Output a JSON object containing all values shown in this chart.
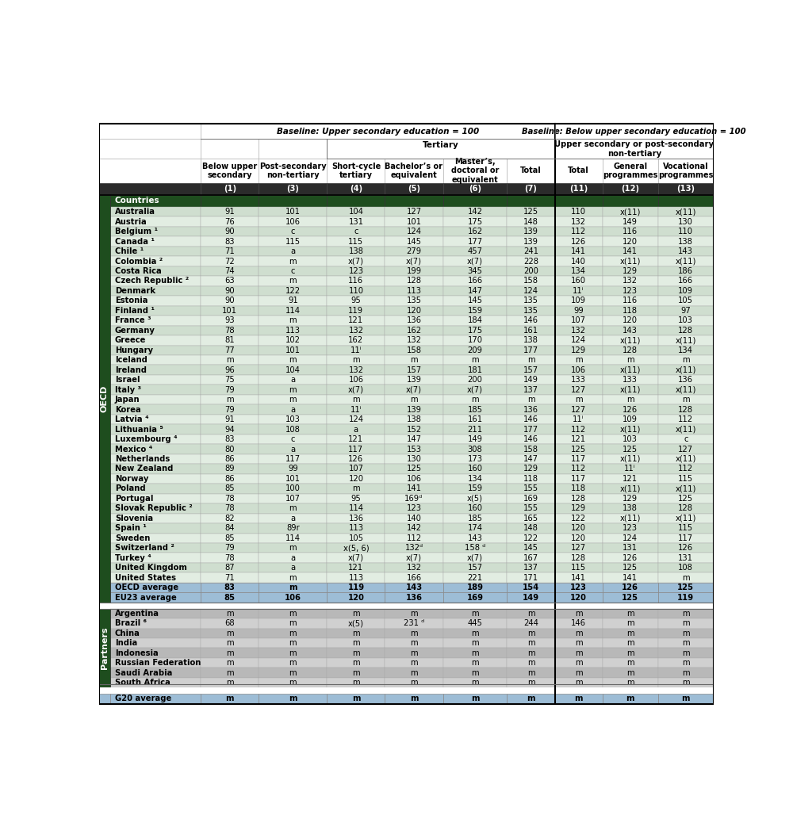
{
  "col_headers": [
    "Below upper\nsecondary",
    "Post-secondary\nnon-tertiary",
    "Short-cycle\ntertiary",
    "Bachelor’s or\nequivalent",
    "Master’s,\ndoctoral or\nequivalent",
    "Total",
    "Total",
    "General\nprogrammes",
    "Vocational\nprogrammes"
  ],
  "col_numbers": [
    "(1)",
    "(3)",
    "(4)",
    "(5)",
    "(6)",
    "(7)",
    "(11)",
    "(12)",
    "(13)"
  ],
  "oecd_rows": [
    [
      "Australia",
      "91",
      "101",
      "104",
      "127",
      "142",
      "125",
      "110",
      "x(11)",
      "x(11)"
    ],
    [
      "Austria",
      "76",
      "106",
      "131",
      "101",
      "175",
      "148",
      "132",
      "149",
      "130"
    ],
    [
      "Belgium ¹",
      "90",
      "c",
      "c",
      "124",
      "162",
      "139",
      "112",
      "116",
      "110"
    ],
    [
      "Canada ¹",
      "83",
      "115",
      "115",
      "145",
      "177",
      "139",
      "126",
      "120",
      "138"
    ],
    [
      "Chile ¹",
      "71",
      "a",
      "138",
      "279",
      "457",
      "241",
      "141",
      "141",
      "143"
    ],
    [
      "Colombia ²",
      "72",
      "m",
      "x(7)",
      "x(7)",
      "x(7)",
      "228",
      "140",
      "x(11)",
      "x(11)"
    ],
    [
      "Costa Rica",
      "74",
      "c",
      "123",
      "199",
      "345",
      "200",
      "134",
      "129",
      "186"
    ],
    [
      "Czech Republic ²",
      "63",
      "m",
      "116",
      "128",
      "166",
      "158",
      "160",
      "132",
      "166"
    ],
    [
      "Denmark",
      "90",
      "122",
      "110",
      "113",
      "147",
      "124",
      "11ⁱ",
      "123",
      "109"
    ],
    [
      "Estonia",
      "90",
      "91",
      "95",
      "135",
      "145",
      "135",
      "109",
      "116",
      "105"
    ],
    [
      "Finland ¹",
      "101",
      "114",
      "119",
      "120",
      "159",
      "135",
      "99",
      "118",
      "97"
    ],
    [
      "France ³",
      "93",
      "m",
      "121",
      "136",
      "184",
      "146",
      "107",
      "120",
      "103"
    ],
    [
      "Germany",
      "78",
      "113",
      "132",
      "162",
      "175",
      "161",
      "132",
      "143",
      "128"
    ],
    [
      "Greece",
      "81",
      "102",
      "162",
      "132",
      "170",
      "138",
      "124",
      "x(11)",
      "x(11)"
    ],
    [
      "Hungary",
      "77",
      "101",
      "11ⁱ",
      "158",
      "209",
      "177",
      "129",
      "128",
      "134"
    ],
    [
      "Iceland",
      "m",
      "m",
      "m",
      "m",
      "m",
      "m",
      "m",
      "m",
      "m"
    ],
    [
      "Ireland",
      "96",
      "104",
      "132",
      "157",
      "181",
      "157",
      "106",
      "x(11)",
      "x(11)"
    ],
    [
      "Israel",
      "75",
      "a",
      "106",
      "139",
      "200",
      "149",
      "133",
      "133",
      "136"
    ],
    [
      "Italy ³",
      "79",
      "m",
      "x(7)",
      "x(7)",
      "x(7)",
      "137",
      "127",
      "x(11)",
      "x(11)"
    ],
    [
      "Japan",
      "m",
      "m",
      "m",
      "m",
      "m",
      "m",
      "m",
      "m",
      "m"
    ],
    [
      "Korea",
      "79",
      "a",
      "11ⁱ",
      "139",
      "185",
      "136",
      "127",
      "126",
      "128"
    ],
    [
      "Latvia ⁴",
      "91",
      "103",
      "124",
      "138",
      "161",
      "146",
      "11ⁱ",
      "109",
      "112"
    ],
    [
      "Lithuania ⁵",
      "94",
      "108",
      "a",
      "152",
      "211",
      "177",
      "112",
      "x(11)",
      "x(11)"
    ],
    [
      "Luxembourg ⁴",
      "83",
      "c",
      "121",
      "147",
      "149",
      "146",
      "121",
      "103",
      "c"
    ],
    [
      "Mexico ⁴",
      "80",
      "a",
      "117",
      "153",
      "308",
      "158",
      "125",
      "125",
      "127"
    ],
    [
      "Netherlands",
      "86",
      "117",
      "126",
      "130",
      "173",
      "147",
      "117",
      "x(11)",
      "x(11)"
    ],
    [
      "New Zealand",
      "89",
      "99",
      "107",
      "125",
      "160",
      "129",
      "112",
      "11ⁱ",
      "112"
    ],
    [
      "Norway",
      "86",
      "101",
      "120",
      "106",
      "134",
      "118",
      "117",
      "121",
      "115"
    ],
    [
      "Poland",
      "85",
      "100",
      "m",
      "141",
      "159",
      "155",
      "118",
      "x(11)",
      "x(11)"
    ],
    [
      "Portugal",
      "78",
      "107",
      "95",
      "169ᵈ",
      "x(5)",
      "169",
      "128",
      "129",
      "125"
    ],
    [
      "Slovak Republic ²",
      "78",
      "m",
      "114",
      "123",
      "160",
      "155",
      "129",
      "138",
      "128"
    ],
    [
      "Slovenia",
      "82",
      "a",
      "136",
      "140",
      "185",
      "165",
      "122",
      "x(11)",
      "x(11)"
    ],
    [
      "Spain ¹",
      "84",
      "89r",
      "113",
      "142",
      "174",
      "148",
      "120",
      "123",
      "115"
    ],
    [
      "Sweden",
      "85",
      "114",
      "105",
      "112",
      "143",
      "122",
      "120",
      "124",
      "117"
    ],
    [
      "Switzerland ²",
      "79",
      "m",
      "x(5, 6)",
      "132ᵈ",
      "158 ᵈ",
      "145",
      "127",
      "131",
      "126"
    ],
    [
      "Turkey ⁴",
      "78",
      "a",
      "x(7)",
      "x(7)",
      "x(7)",
      "167",
      "128",
      "126",
      "131"
    ],
    [
      "United Kingdom",
      "87",
      "a",
      "121",
      "132",
      "157",
      "137",
      "115",
      "125",
      "108"
    ],
    [
      "United States",
      "71",
      "m",
      "113",
      "166",
      "221",
      "171",
      "141",
      "141",
      "m"
    ]
  ],
  "oecd_avg_rows": [
    [
      "OECD average",
      "83",
      "m",
      "119",
      "143",
      "189",
      "154",
      "123",
      "126",
      "125"
    ],
    [
      "EU23 average",
      "85",
      "106",
      "120",
      "136",
      "169",
      "149",
      "120",
      "125",
      "119"
    ]
  ],
  "partner_rows": [
    [
      "Argentina",
      "m",
      "m",
      "m",
      "m",
      "m",
      "m",
      "m",
      "m",
      "m"
    ],
    [
      "Brazil ⁶",
      "68",
      "m",
      "x(5)",
      "231 ᵈ",
      "445",
      "244",
      "146",
      "m",
      "m"
    ],
    [
      "China",
      "m",
      "m",
      "m",
      "m",
      "m",
      "m",
      "m",
      "m",
      "m"
    ],
    [
      "India",
      "m",
      "m",
      "m",
      "m",
      "m",
      "m",
      "m",
      "m",
      "m"
    ],
    [
      "Indonesia",
      "m",
      "m",
      "m",
      "m",
      "m",
      "m",
      "m",
      "m",
      "m"
    ],
    [
      "Russian Federation",
      "m",
      "m",
      "m",
      "m",
      "m",
      "m",
      "m",
      "m",
      "m"
    ],
    [
      "Saudi Arabia",
      "m",
      "m",
      "m",
      "m",
      "m",
      "m",
      "m",
      "m",
      "m"
    ],
    [
      "South Africa",
      "m",
      "m",
      "m",
      "m",
      "m",
      "m",
      "m",
      "m",
      "m"
    ]
  ],
  "g20_row": [
    "G20 average",
    "m",
    "m",
    "m",
    "m",
    "m",
    "m",
    "m",
    "m",
    "m"
  ],
  "colors": {
    "col_number_bg": "#2b2b2b",
    "col_number_text": "#ffffff",
    "countries_header_bg": "#1e4d1e",
    "countries_header_text": "#ffffff",
    "oecd_row_a": "#cfdecf",
    "oecd_row_b": "#e2ede2",
    "avg_row_bg": "#9dbdd6",
    "partner_row_a": "#b8b8b8",
    "partner_row_b": "#d0d0d0",
    "g20_row_bg": "#9dbdd6",
    "side_label_bg": "#1e4d1e",
    "side_label_text": "#ffffff",
    "white": "#ffffff",
    "black": "#000000"
  },
  "fs": 7.2,
  "fs_header": 7.5,
  "fs_side": 7.0
}
